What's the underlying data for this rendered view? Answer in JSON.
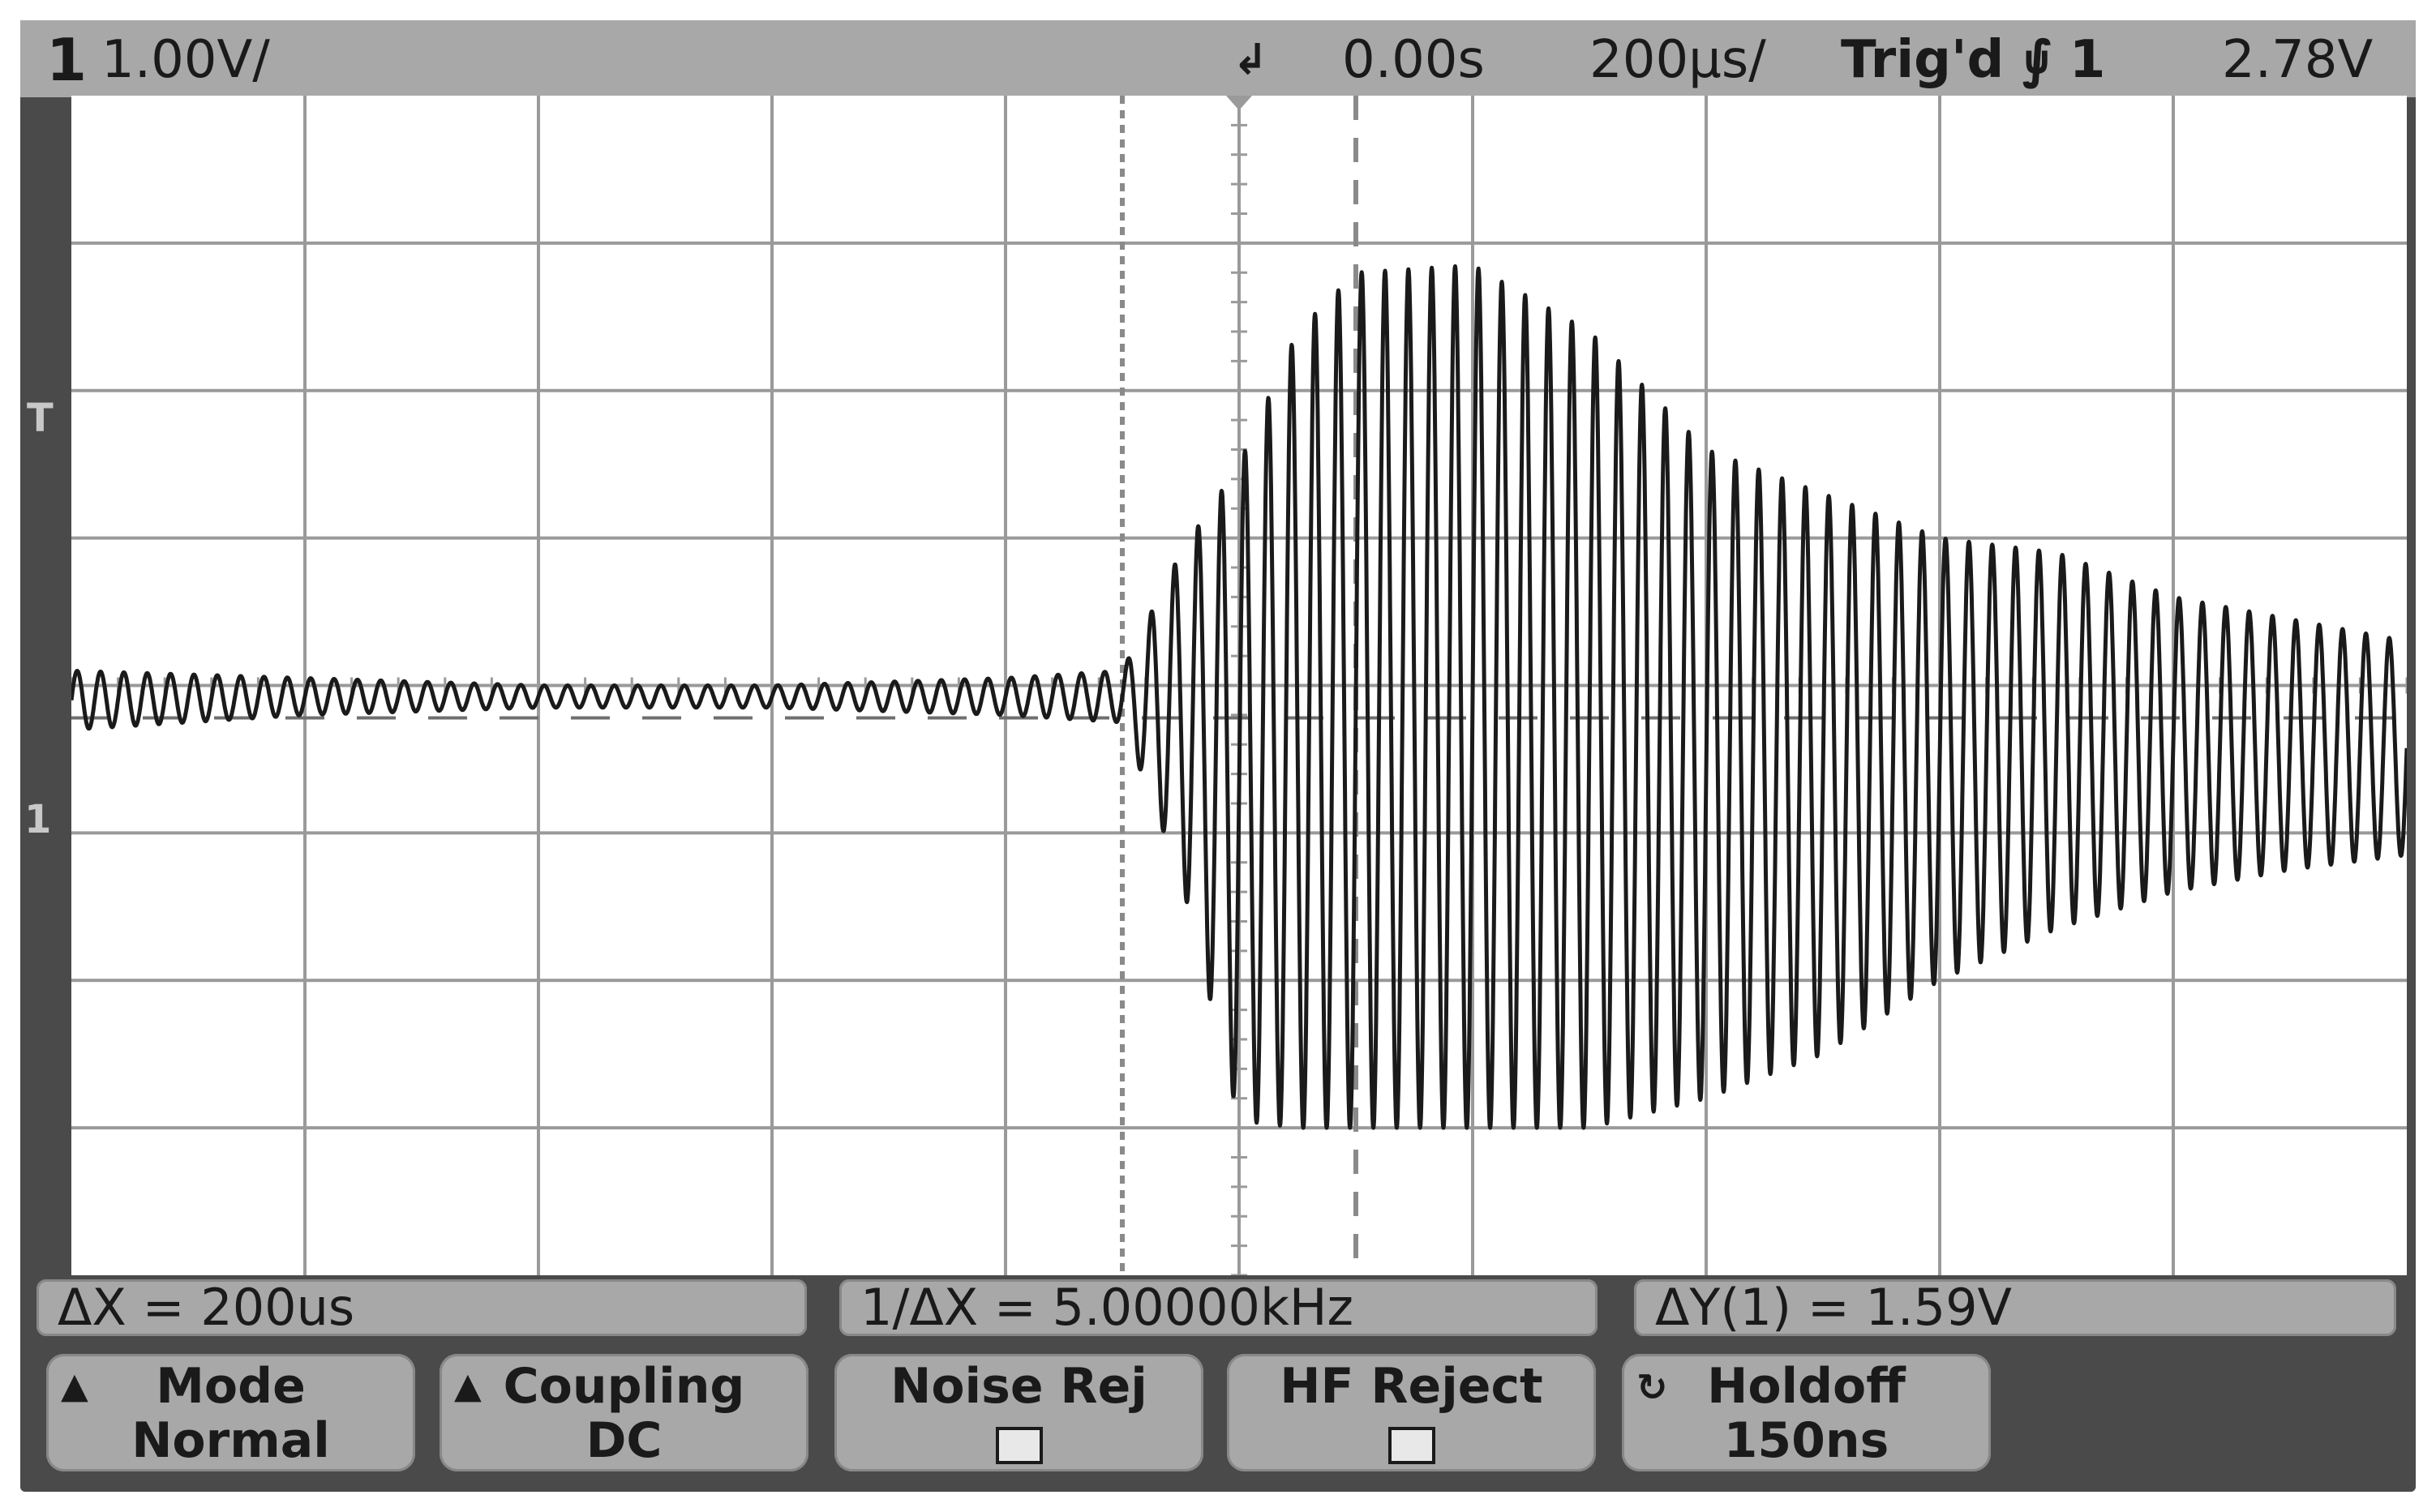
{
  "status_bar": {
    "channel": "1",
    "volts_per_div": "1.00V/",
    "time_position": "0.00s",
    "time_per_div": "200µs/",
    "trigger_status": "Trig'd",
    "trigger_slope_icon": "falling-edge-icon",
    "trigger_source": "1",
    "trigger_level": "2.78V"
  },
  "markers": {
    "trigger_level": "T",
    "channel_ground": "1"
  },
  "measurements": {
    "delta_x": "ΔX  =  200us",
    "inverse_delta_x": "1/ΔX  =  5.00000kHz",
    "delta_y": "ΔY(1)  =  1.59V"
  },
  "softkeys": [
    {
      "label": "Mode",
      "value": "Normal",
      "icon": "up-triangle-icon"
    },
    {
      "label": "Coupling",
      "value": "DC",
      "icon": "up-triangle-icon"
    },
    {
      "label": "Noise  Rej",
      "value": "",
      "checkbox": false
    },
    {
      "label": "HF  Reject",
      "value": "",
      "checkbox": false
    },
    {
      "label": "Holdoff",
      "value": "150ns",
      "icon": "rotate-knob-icon"
    }
  ],
  "chart_data": {
    "type": "line",
    "title": "",
    "xlabel": "",
    "ylabel": "",
    "x_unit": "µs",
    "y_unit": "V",
    "divisions": {
      "x": 10,
      "y": 8
    },
    "volts_per_div": 1.0,
    "time_per_div_us": 200,
    "xlim": [
      -1000,
      1000
    ],
    "ylim": [
      -1.0,
      7.0
    ],
    "trigger_level_v": 2.78,
    "cursor_x_us": [
      -100,
      100
    ],
    "grid": true,
    "series": [
      {
        "x": [
          -1000,
          -800,
          -600,
          -400,
          -200,
          -100,
          -50,
          0,
          50,
          100,
          200,
          300,
          400,
          500,
          600,
          700,
          800,
          900,
          1000
        ],
        "envelope_top_v": [
          3.1,
          3.05,
          3.0,
          3.0,
          3.05,
          3.1,
          3.9,
          4.5,
          5.4,
          5.8,
          5.85,
          5.4,
          4.6,
          4.3,
          4.0,
          3.9,
          3.6,
          3.45,
          3.3
        ],
        "envelope_bottom_v": [
          2.7,
          2.8,
          2.85,
          2.85,
          2.8,
          2.75,
          1.7,
          0.05,
          0.0,
          0.0,
          0.0,
          0.0,
          0.2,
          0.5,
          1.0,
          1.35,
          1.6,
          1.75,
          1.85
        ],
        "cycles_per_div": 10
      }
    ]
  }
}
